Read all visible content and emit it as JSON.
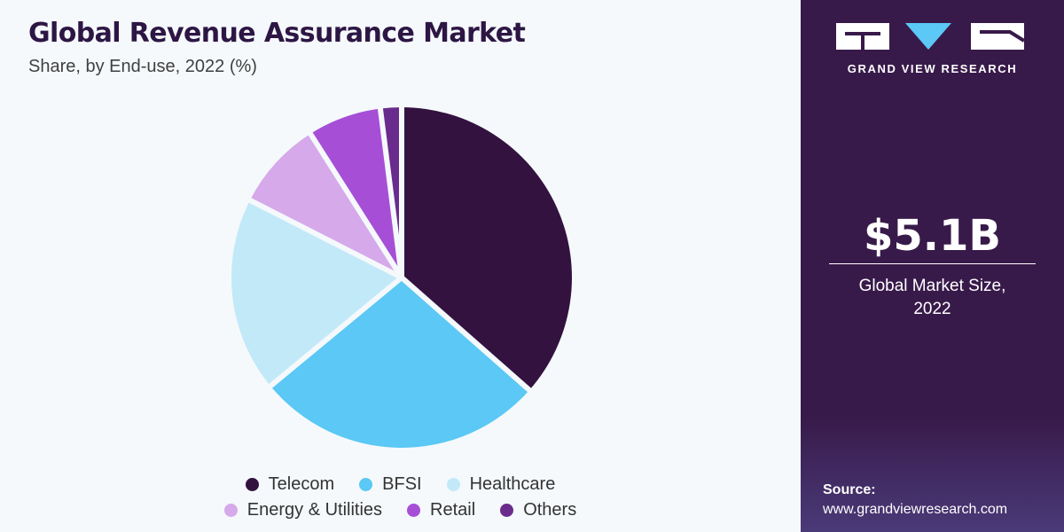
{
  "header": {
    "title": "Global Revenue Assurance Market",
    "subtitle": "Share, by End-use, 2022 (%)"
  },
  "chart_data": {
    "type": "pie",
    "categories": [
      "Telecom",
      "BFSI",
      "Healthcare",
      "Energy & Utilities",
      "Retail",
      "Others"
    ],
    "values": [
      36.5,
      27.5,
      18.5,
      8.5,
      7,
      2
    ],
    "colors": [
      "#33123f",
      "#5bc8f5",
      "#c2e9f8",
      "#d6a9ea",
      "#a64fd6",
      "#6a2c8c"
    ],
    "legend_position": "bottom"
  },
  "sidebar": {
    "brand": "GRAND VIEW RESEARCH",
    "stat_value": "$5.1B",
    "stat_label_line1": "Global Market Size,",
    "stat_label_line2": "2022",
    "source_title": "Source:",
    "source_url": "www.grandviewresearch.com",
    "background_color": "#381a4a"
  }
}
